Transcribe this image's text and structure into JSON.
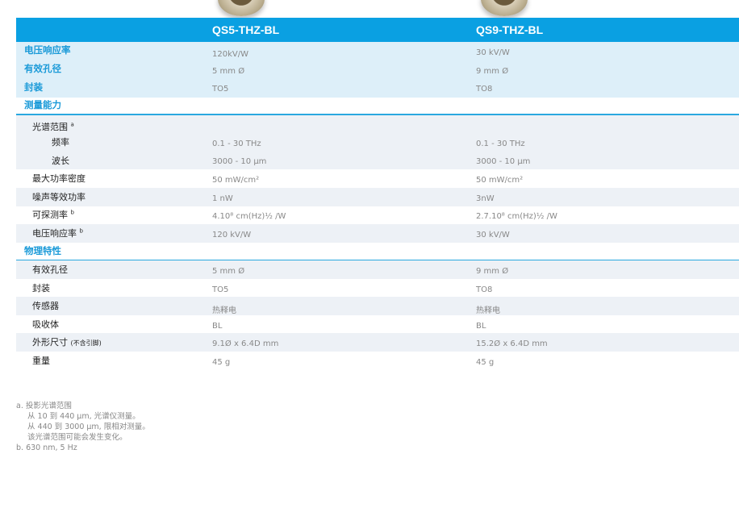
{
  "columns": [
    "QS5-THZ-BL",
    "QS9-THZ-BL"
  ],
  "summary": [
    {
      "label": "电压响应率",
      "values": [
        "120kV/W",
        "30 kV/W"
      ]
    },
    {
      "label": "有效孔径",
      "values": [
        "5 mm Ø",
        "9 mm Ø"
      ]
    },
    {
      "label": "封装",
      "values": [
        "TO5",
        "TO8"
      ]
    }
  ],
  "measurement": {
    "title": "测量能力",
    "spectral_label": "光谱范围",
    "spectral_note": "a",
    "rows": [
      {
        "label": "频率",
        "values": [
          "0.1 - 30 THz",
          "0.1 - 30 THz"
        ]
      },
      {
        "label": "波长",
        "values": [
          "3000 - 10 µm",
          "3000 - 10 µm"
        ]
      },
      {
        "label": "最大功率密度",
        "values": [
          "50 mW/cm²",
          "50 mW/cm²"
        ]
      },
      {
        "label": "噪声等效功率",
        "values": [
          "1 nW",
          "3nW"
        ]
      },
      {
        "label": "可探测率",
        "note": "b",
        "values": [
          "4.10⁸ cm(Hz)½ /W",
          "2.7.10⁸ cm(Hz)½ /W"
        ]
      },
      {
        "label": "电压响应率",
        "note": "b",
        "values": [
          "120 kV/W",
          "30 kV/W"
        ]
      }
    ]
  },
  "physical": {
    "title": "物理特性",
    "rows": [
      {
        "label": "有效孔径",
        "values": [
          "5 mm Ø",
          "9 mm Ø"
        ]
      },
      {
        "label": "封装",
        "values": [
          "TO5",
          "TO8"
        ]
      },
      {
        "label": "传感器",
        "values": [
          "热释电",
          "热释电"
        ]
      },
      {
        "label": "吸收体",
        "values": [
          "BL",
          "BL"
        ]
      },
      {
        "label": "外形尺寸",
        "label_small": "(不含引脚)",
        "values": [
          "9.1Ø x 6.4D mm",
          "15.2Ø x 6.4D mm"
        ]
      },
      {
        "label": "重量",
        "values": [
          "45 g",
          "45 g"
        ]
      }
    ]
  },
  "footnotes": {
    "a_marker": "a.",
    "a_lines": [
      "投影光谱范围",
      "从 10 到 440 µm, 光谱仪测量。",
      "从 440 到 3000 µm, 限相对测量。",
      "该光谱范围可能会发生变化。"
    ],
    "b_marker": "b.",
    "b_text": "630 nm, 5 Hz"
  }
}
